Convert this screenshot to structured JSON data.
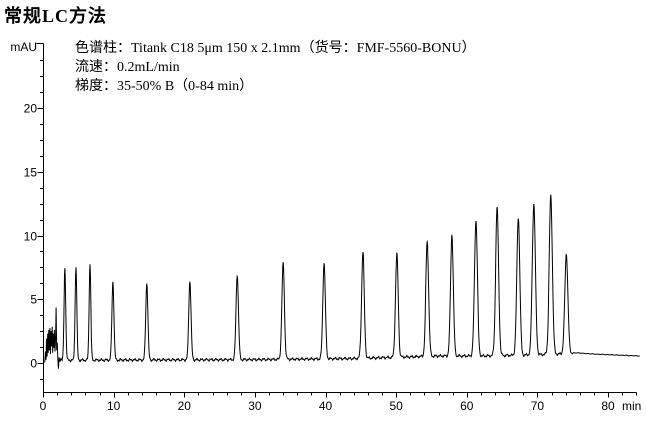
{
  "page": {
    "title": "常规LC方法"
  },
  "annotation": {
    "lines": [
      "色谱柱：Titank C18 5μm 150 x 2.1mm（货号：FMF-5560-BONU）",
      "流速：0.2mL/min",
      "梯度：35-50% B（0-84 min）"
    ]
  },
  "chart_data": {
    "type": "line",
    "title": "",
    "xlabel": "min",
    "ylabel": "mAU",
    "grid": false,
    "legend": false,
    "trace_color": "#000000",
    "x_axis": {
      "min": 0,
      "max": 84,
      "major_tick": 10,
      "minor_tick": 2,
      "tick_labels": [
        "0",
        "10",
        "20",
        "30",
        "40",
        "50",
        "60",
        "70",
        "80"
      ],
      "tick_label_values": [
        0,
        10,
        20,
        30,
        40,
        50,
        60,
        70,
        80
      ]
    },
    "y_axis": {
      "min": -2.3,
      "max": 25.2,
      "major_tick": 5,
      "minor_tick": 1.25,
      "tick_labels": [
        "0",
        "5",
        "10",
        "15",
        "20"
      ],
      "tick_label_values": [
        0,
        5,
        10,
        15,
        20
      ]
    },
    "peaks": [
      {
        "t_min": 3.1,
        "height_mAU": 7.3,
        "sigma_min": 0.12
      },
      {
        "t_min": 4.67,
        "height_mAU": 7.35,
        "sigma_min": 0.12
      },
      {
        "t_min": 6.65,
        "height_mAU": 7.55,
        "sigma_min": 0.12
      },
      {
        "t_min": 9.9,
        "height_mAU": 6.15,
        "sigma_min": 0.14
      },
      {
        "t_min": 14.7,
        "height_mAU": 6.05,
        "sigma_min": 0.15
      },
      {
        "t_min": 20.8,
        "height_mAU": 6.15,
        "sigma_min": 0.16
      },
      {
        "t_min": 27.5,
        "height_mAU": 6.65,
        "sigma_min": 0.17
      },
      {
        "t_min": 34.0,
        "height_mAU": 7.5,
        "sigma_min": 0.18
      },
      {
        "t_min": 39.8,
        "height_mAU": 7.5,
        "sigma_min": 0.18
      },
      {
        "t_min": 45.3,
        "height_mAU": 8.35,
        "sigma_min": 0.19
      },
      {
        "t_min": 50.1,
        "height_mAU": 8.1,
        "sigma_min": 0.19
      },
      {
        "t_min": 54.4,
        "height_mAU": 8.95,
        "sigma_min": 0.2
      },
      {
        "t_min": 57.9,
        "height_mAU": 9.5,
        "sigma_min": 0.2
      },
      {
        "t_min": 61.3,
        "height_mAU": 10.6,
        "sigma_min": 0.21
      },
      {
        "t_min": 64.3,
        "height_mAU": 11.6,
        "sigma_min": 0.21
      },
      {
        "t_min": 67.3,
        "height_mAU": 10.8,
        "sigma_min": 0.21
      },
      {
        "t_min": 69.5,
        "height_mAU": 11.8,
        "sigma_min": 0.22
      },
      {
        "t_min": 71.9,
        "height_mAU": 12.4,
        "sigma_min": 0.22
      },
      {
        "t_min": 74.1,
        "height_mAU": 7.85,
        "sigma_min": 0.22
      }
    ],
    "baseline_points": [
      [
        0,
        0.1
      ],
      [
        3,
        0.22
      ],
      [
        30,
        0.27
      ],
      [
        44,
        0.35
      ],
      [
        50,
        0.45
      ],
      [
        56,
        0.55
      ],
      [
        62,
        0.55
      ],
      [
        68,
        0.62
      ],
      [
        73,
        0.7
      ],
      [
        75.5,
        0.8
      ],
      [
        78,
        0.7
      ],
      [
        84.5,
        0.55
      ]
    ],
    "solvent_front_noise": [
      [
        0.35,
        0.9
      ],
      [
        0.42,
        0.25
      ],
      [
        0.5,
        1.9
      ],
      [
        0.58,
        0.5
      ],
      [
        0.66,
        2.3
      ],
      [
        0.74,
        0.8
      ],
      [
        0.82,
        2.6
      ],
      [
        0.9,
        1.0
      ],
      [
        0.98,
        2.75
      ],
      [
        1.06,
        0.7
      ],
      [
        1.14,
        2.5
      ],
      [
        1.22,
        1.3
      ],
      [
        1.3,
        2.85
      ],
      [
        1.38,
        0.8
      ],
      [
        1.46,
        2.3
      ],
      [
        1.54,
        1.2
      ],
      [
        1.62,
        2.6
      ],
      [
        1.7,
        0.9
      ],
      [
        1.78,
        2.0
      ],
      [
        1.86,
        4.35
      ],
      [
        1.94,
        1.0
      ],
      [
        2.02,
        1.6
      ],
      [
        2.1,
        0.35
      ],
      [
        2.18,
        -0.45
      ],
      [
        2.28,
        0.45
      ],
      [
        2.4,
        0.1
      ],
      [
        2.55,
        0.35
      ],
      [
        2.7,
        0.2
      ]
    ]
  }
}
